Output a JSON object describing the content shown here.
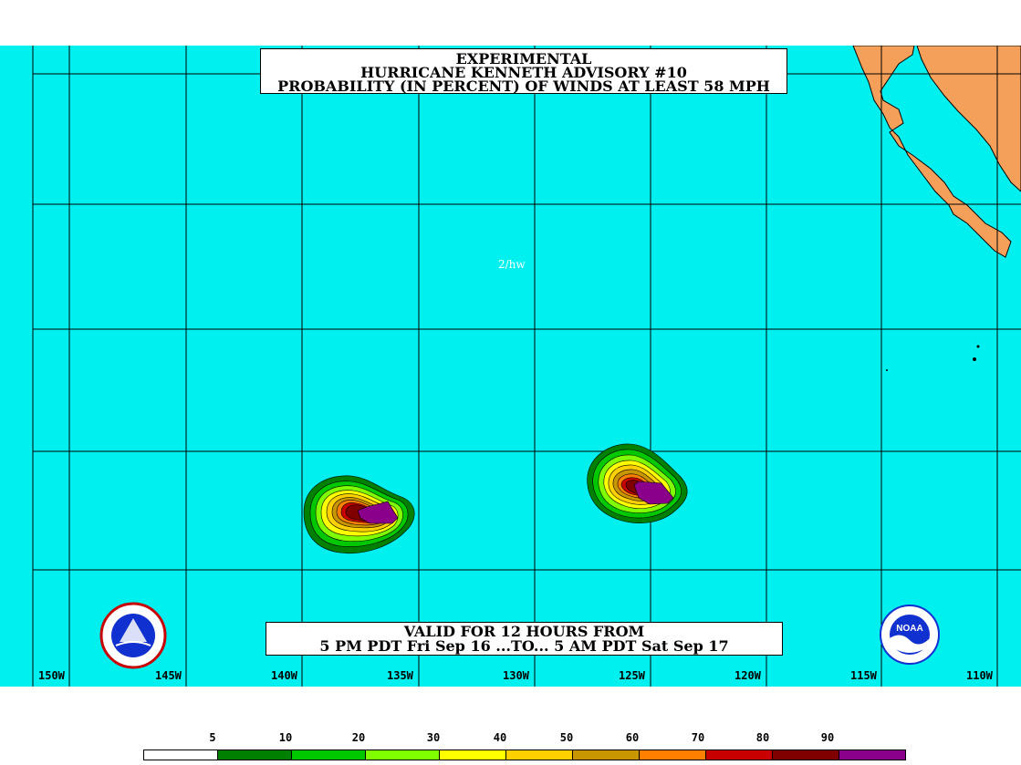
{
  "title": {
    "line1": "EXPERIMENTAL",
    "line2": "HURRICANE KENNETH ADVISORY #10",
    "line3": "PROBABILITY (IN PERCENT) OF WINDS AT LEAST 58 MPH"
  },
  "credit": "2/hw",
  "valid": {
    "line1": "VALID FOR 12 HOURS FROM",
    "line2": "5 PM PDT Fri Sep 16 ...TO... 5 AM PDT Sat Sep 17"
  },
  "longitude_labels": [
    "150W",
    "145W",
    "140W",
    "135W",
    "130W",
    "125W",
    "120W",
    "115W",
    "110W"
  ],
  "legend": {
    "labels": [
      "5",
      "10",
      "20",
      "30",
      "40",
      "50",
      "60",
      "70",
      "80",
      "90"
    ],
    "colors": [
      "#ffffff",
      "#008000",
      "#00c800",
      "#80ff00",
      "#ffff00",
      "#ffd000",
      "#c89600",
      "#ff8000",
      "#c80000",
      "#800000",
      "#8b008b"
    ]
  },
  "colors": {
    "ocean": "#00f0f0",
    "land": "#f5a05a",
    "grid": "#000000"
  },
  "logos": [
    "nws-logo",
    "noaa-logo"
  ]
}
